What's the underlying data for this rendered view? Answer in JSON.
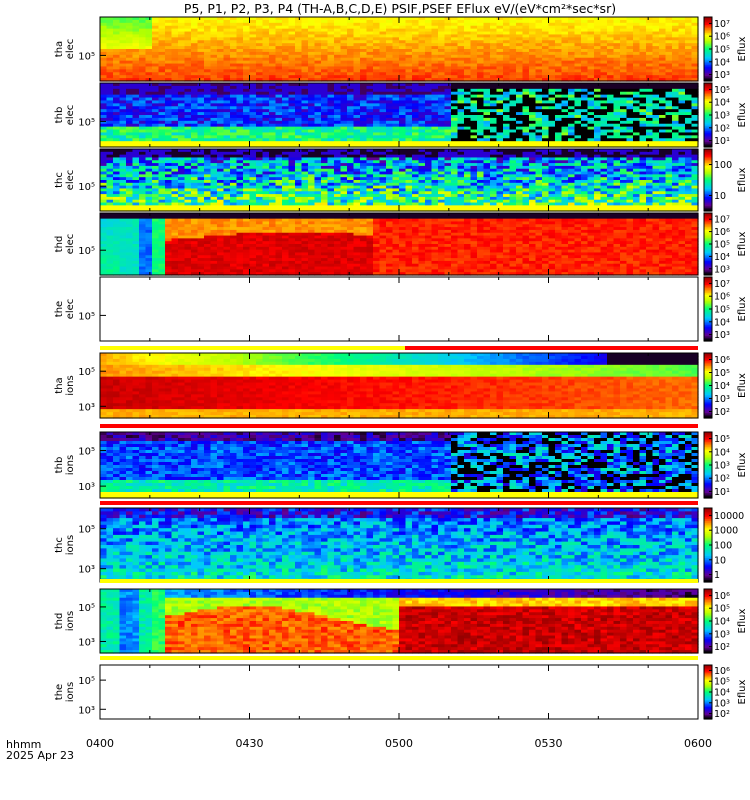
{
  "title": "P5, P1, P2, P3, P4 (TH-A,B,C,D,E) PSIF,PSEF EFlux eV/(eV*cm²*sec*sr)",
  "footer": {
    "time_format": "hhmm",
    "date": "2025 Apr 23"
  },
  "colors": {
    "frame": "#000000",
    "flag_yellow": "#ffff00",
    "flag_red": "#ff0000"
  },
  "chart_data": {
    "type": "heatmap",
    "colormap": "rainbow (black-violet-blue-cyan-green-yellow-red-dark red)",
    "x_axis": {
      "range": [
        "0400",
        "0600"
      ],
      "ticks": [
        "0400",
        "0430",
        "0500",
        "0530",
        "0600"
      ]
    },
    "panels": [
      {
        "probe": "tha",
        "species": "elec",
        "ytick": "10⁵",
        "colorbar_label": "Eflux",
        "colorbar_ticks": [
          "10³",
          "10⁴",
          "10⁵",
          "10⁶",
          "10⁷"
        ],
        "pattern": "uniform",
        "level_hi": 0.86,
        "level_lo": 0.72,
        "t_early": 0.08,
        "early_dip": 0.15,
        "noise": 0.03
      },
      {
        "probe": "thb",
        "species": "elec",
        "ytick": "10⁵",
        "colorbar_label": "Eflux",
        "colorbar_ticks": [
          "10¹",
          "10²",
          "10³",
          "10⁴",
          "10⁵"
        ],
        "pattern": "thb_elec",
        "t_switch": 0.59,
        "noise": 0.1
      },
      {
        "probe": "thc",
        "species": "elec",
        "ytick": "10⁵",
        "colorbar_label": "Eflux",
        "colorbar_ticks": [
          "10",
          "100"
        ],
        "pattern": "noisy_green",
        "level_hi": 0.2,
        "level_lo": 0.5,
        "noise": 0.22,
        "bottom_yellow": true
      },
      {
        "probe": "thd",
        "species": "elec",
        "ytick": "10⁵",
        "colorbar_label": "Eflux",
        "colorbar_ticks": [
          "10³",
          "10⁴",
          "10⁵",
          "10⁶",
          "10⁷"
        ],
        "pattern": "thd_elec",
        "noise": 0.03
      },
      {
        "probe": "the",
        "species": "elec",
        "ytick": "10⁵",
        "colorbar_label": "Eflux",
        "colorbar_ticks": [
          "10³",
          "10⁴",
          "10⁵",
          "10⁶",
          "10⁷"
        ],
        "pattern": "empty",
        "flag": {
          "first": "yellow",
          "second": "red",
          "switch_t": 0.51
        }
      },
      {
        "probe": "tha",
        "species": "ions",
        "ytick_upper": "10⁵",
        "ytick_lower": "10³",
        "colorbar_label": "Eflux",
        "colorbar_ticks": [
          "10²",
          "10³",
          "10⁴",
          "10⁵",
          "10⁶"
        ],
        "pattern": "tha_ions",
        "noise": 0.02,
        "flag": {
          "first": "red",
          "second": "red",
          "switch_t": 0
        }
      },
      {
        "probe": "thb",
        "species": "ions",
        "ytick_upper": "10⁵",
        "ytick_lower": "10³",
        "colorbar_label": "Eflux",
        "colorbar_ticks": [
          "10¹",
          "10²",
          "10³",
          "10⁴",
          "10⁵"
        ],
        "pattern": "thb_ions",
        "t_switch": 0.59,
        "noise": 0.08,
        "flag": {
          "first": "red",
          "second": "red",
          "switch_t": 0
        }
      },
      {
        "probe": "thc",
        "species": "ions",
        "ytick_upper": "10⁵",
        "ytick_lower": "10³",
        "colorbar_label": "",
        "colorbar_ticks": [
          "1",
          "10",
          "100",
          "1000",
          "10000"
        ],
        "pattern": "thc_ions",
        "noise": 0.12,
        "flag": {
          "first": "yellow",
          "second": "yellow",
          "switch_t": 0
        }
      },
      {
        "probe": "thd",
        "species": "ions",
        "ytick_upper": "10⁵",
        "ytick_lower": "10³",
        "colorbar_label": "Eflux",
        "colorbar_ticks": [
          "10²",
          "10³",
          "10⁴",
          "10⁵",
          "10⁶"
        ],
        "pattern": "thd_ions",
        "noise": 0.05,
        "flag": {
          "first": "yellow",
          "second": "yellow",
          "switch_t": 0
        }
      },
      {
        "probe": "the",
        "species": "ions",
        "ytick_upper": "10⁵",
        "ytick_lower": "10³",
        "colorbar_label": "Eflux",
        "colorbar_ticks": [
          "10²",
          "10³",
          "10⁴",
          "10⁵",
          "10⁶"
        ],
        "pattern": "empty"
      }
    ]
  }
}
